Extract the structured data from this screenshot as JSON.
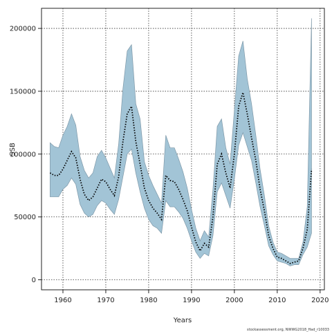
{
  "chart_data": {
    "type": "line",
    "xlabel": "Years",
    "ylabel": "SSB",
    "xlim": [
      1955,
      2021
    ],
    "ylim": [
      -8000,
      216000
    ],
    "xticks": [
      1960,
      1970,
      1980,
      1990,
      2000,
      2010,
      2020
    ],
    "yticks": [
      0,
      50000,
      100000,
      150000,
      200000
    ],
    "grid": true,
    "credit": "stockassessment.org, NWWG2018_Had_r10033",
    "colors": {
      "band_fill": "#a2c4d6",
      "band_edge": "#7e98a8",
      "line": "#000000"
    },
    "series": [
      {
        "style": "dotted-line",
        "x": [
          1957,
          1958,
          1959,
          1960,
          1961,
          1962,
          1963,
          1964,
          1965,
          1966,
          1967,
          1968,
          1969,
          1970,
          1971,
          1972,
          1973,
          1974,
          1975,
          1976,
          1977,
          1978,
          1979,
          1980,
          1981,
          1982,
          1983,
          1984,
          1985,
          1986,
          1987,
          1988,
          1989,
          1990,
          1991,
          1992,
          1993,
          1994,
          1995,
          1996,
          1997,
          1998,
          1999,
          2000,
          2001,
          2002,
          2003,
          2004,
          2005,
          2006,
          2007,
          2008,
          2009,
          2010,
          2011,
          2012,
          2013,
          2014,
          2015,
          2016,
          2017,
          2018
        ],
        "values": [
          85000,
          83000,
          83000,
          88000,
          95000,
          102000,
          97000,
          80000,
          68000,
          63000,
          66000,
          73000,
          80000,
          78000,
          72000,
          67000,
          82000,
          110000,
          132000,
          138000,
          110000,
          92000,
          73000,
          63000,
          57000,
          53000,
          48000,
          83000,
          79000,
          78000,
          72000,
          64000,
          55000,
          42000,
          30000,
          23000,
          29000,
          26000,
          50000,
          92000,
          100000,
          85000,
          73000,
          100000,
          138000,
          149000,
          132000,
          113000,
          95000,
          72000,
          55000,
          35000,
          25000,
          18000,
          17000,
          15000,
          13000,
          14000,
          15000,
          25000,
          40000,
          88000
        ]
      },
      {
        "style": "band-upper",
        "values": [
          109000,
          106000,
          105000,
          115000,
          122000,
          132000,
          123000,
          98000,
          87000,
          81000,
          85000,
          98000,
          103000,
          97000,
          89000,
          81000,
          108000,
          152000,
          182000,
          187000,
          140000,
          128000,
          94000,
          83000,
          75000,
          68000,
          61000,
          115000,
          105000,
          105000,
          96000,
          86000,
          73000,
          56000,
          41000,
          31000,
          39000,
          34000,
          72000,
          122000,
          128000,
          105000,
          92000,
          135000,
          178000,
          190000,
          160000,
          140000,
          115000,
          88000,
          67000,
          43000,
          30000,
          22000,
          21000,
          19000,
          17000,
          17000,
          17000,
          30000,
          58000,
          208000
        ]
      },
      {
        "style": "band-lower",
        "values": [
          66000,
          66000,
          66000,
          72000,
          75000,
          81000,
          76000,
          60000,
          53000,
          50000,
          52000,
          59000,
          63000,
          61000,
          56000,
          52000,
          64000,
          82000,
          100000,
          104000,
          85000,
          70000,
          57000,
          48000,
          43000,
          41000,
          37000,
          63000,
          58000,
          58000,
          54000,
          49000,
          41000,
          31000,
          22000,
          17000,
          21000,
          19000,
          35000,
          70000,
          77000,
          67000,
          57000,
          80000,
          107000,
          117000,
          106000,
          95000,
          77000,
          58000,
          43000,
          27000,
          20000,
          15000,
          14000,
          13000,
          11000,
          12000,
          12000,
          20000,
          26000,
          37000
        ]
      }
    ]
  }
}
